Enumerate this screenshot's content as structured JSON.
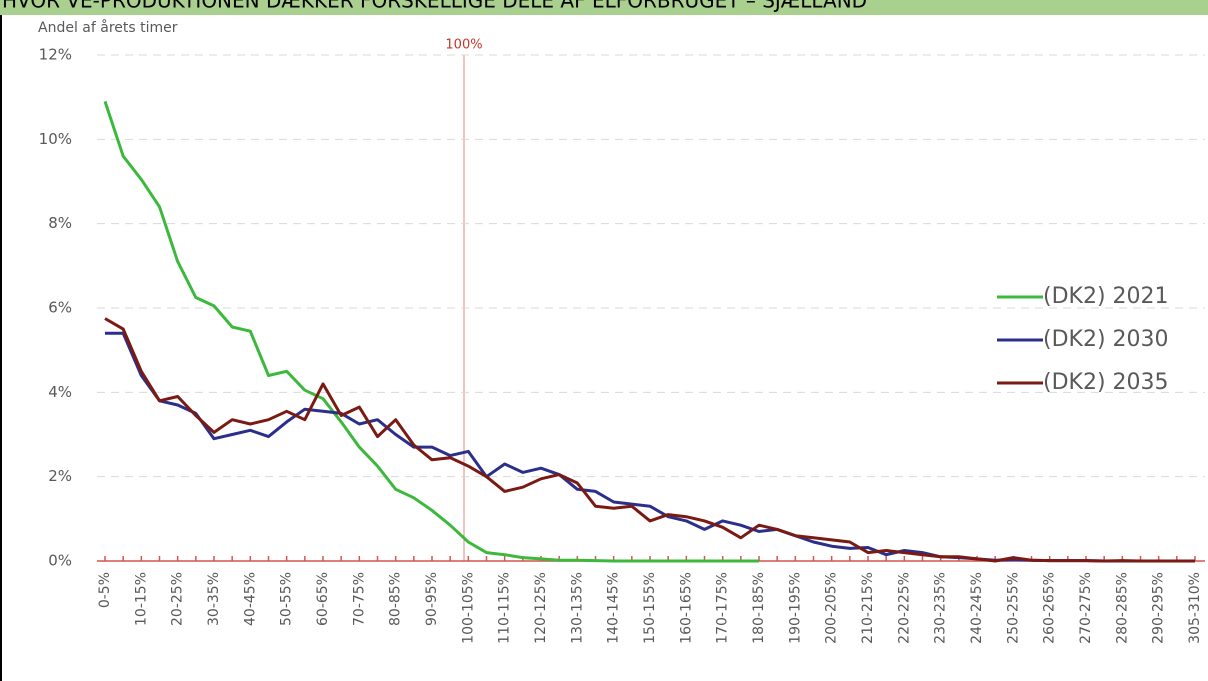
{
  "chart_data": {
    "type": "line",
    "title": "HVOR VE-PRODUKTIONEN DÆKKER FORSKELLIGE DELE AF ELFORBRUGET – SJÆLLAND",
    "y_label": "Andel af årets timer",
    "annotation": "100%",
    "categories": [
      "0-5%",
      null,
      "10-15%",
      null,
      "20-25%",
      null,
      "30-35%",
      null,
      "40-45%",
      null,
      "50-55%",
      null,
      "60-65%",
      null,
      "70-75%",
      null,
      "80-85%",
      null,
      "90-95%",
      null,
      "100-105%",
      null,
      "110-115%",
      null,
      "120-125%",
      null,
      "130-135%",
      null,
      "140-145%",
      null,
      "150-155%",
      null,
      "160-165%",
      null,
      "170-175%",
      null,
      "180-185%",
      null,
      "190-195%",
      null,
      "200-205%",
      null,
      "210-215%",
      null,
      "220-225%",
      null,
      "230-235%",
      null,
      "240-245%",
      null,
      "250-255%",
      null,
      "260-265%",
      null,
      "270-275%",
      null,
      "280-285%",
      null,
      "290-295%",
      null,
      "305-310%"
    ],
    "ylim": [
      0,
      12
    ],
    "yticks": [
      {
        "value": 0,
        "label": "0%"
      },
      {
        "value": 2,
        "label": "2%"
      },
      {
        "value": 4,
        "label": "4%"
      },
      {
        "value": 6,
        "label": "6%"
      },
      {
        "value": 8,
        "label": "8%"
      },
      {
        "value": 10,
        "label": "10%"
      },
      {
        "value": 12,
        "label": "12%"
      }
    ],
    "grid": true,
    "legend": "right",
    "series": [
      {
        "name": "(DK2) 2021",
        "color": "#3cb93c",
        "values": [
          10.9,
          9.6,
          9.05,
          8.4,
          7.1,
          6.25,
          6.05,
          5.55,
          5.45,
          4.4,
          4.5,
          4.05,
          3.85,
          3.3,
          2.7,
          2.25,
          1.7,
          1.5,
          1.2,
          0.85,
          0.45,
          0.2,
          0.15,
          0.08,
          0.05,
          0.02,
          0.02,
          0.01,
          0,
          0,
          0,
          0,
          0,
          0,
          0,
          0,
          0,
          null,
          null,
          null,
          null,
          null,
          null,
          null,
          null,
          null,
          null,
          null,
          null,
          null,
          null,
          null,
          null,
          null,
          null,
          null,
          null,
          null,
          null,
          null,
          null
        ]
      },
      {
        "name": "(DK2) 2030",
        "color": "#2b2f8a",
        "values": [
          5.4,
          5.4,
          4.4,
          3.8,
          3.7,
          3.5,
          2.9,
          3.0,
          3.1,
          2.95,
          3.3,
          3.6,
          3.55,
          3.5,
          3.25,
          3.35,
          3.0,
          2.7,
          2.7,
          2.5,
          2.6,
          2.0,
          2.3,
          2.1,
          2.2,
          2.05,
          1.7,
          1.65,
          1.4,
          1.35,
          1.3,
          1.05,
          0.95,
          0.75,
          0.95,
          0.85,
          0.7,
          0.75,
          0.6,
          0.45,
          0.35,
          0.3,
          0.32,
          0.15,
          0.25,
          0.2,
          0.1,
          0.08,
          0.05,
          0.02,
          0.03,
          0.02,
          0.01,
          0.01,
          0.01,
          0,
          0,
          0,
          0,
          0,
          0
        ]
      },
      {
        "name": "(DK2) 2035",
        "color": "#7b1a13",
        "values": [
          5.75,
          5.5,
          4.5,
          3.8,
          3.9,
          3.45,
          3.05,
          3.35,
          3.25,
          3.35,
          3.55,
          3.35,
          4.2,
          3.45,
          3.65,
          2.95,
          3.35,
          2.75,
          2.4,
          2.45,
          2.25,
          2.0,
          1.65,
          1.75,
          1.95,
          2.05,
          1.85,
          1.3,
          1.25,
          1.3,
          0.95,
          1.1,
          1.05,
          0.95,
          0.8,
          0.55,
          0.85,
          0.75,
          0.6,
          0.55,
          0.5,
          0.45,
          0.2,
          0.25,
          0.2,
          0.15,
          0.1,
          0.1,
          0.05,
          0,
          0.08,
          0.02,
          0.01,
          0.01,
          0.01,
          0,
          0.01,
          0,
          0,
          0,
          0
        ]
      }
    ]
  }
}
